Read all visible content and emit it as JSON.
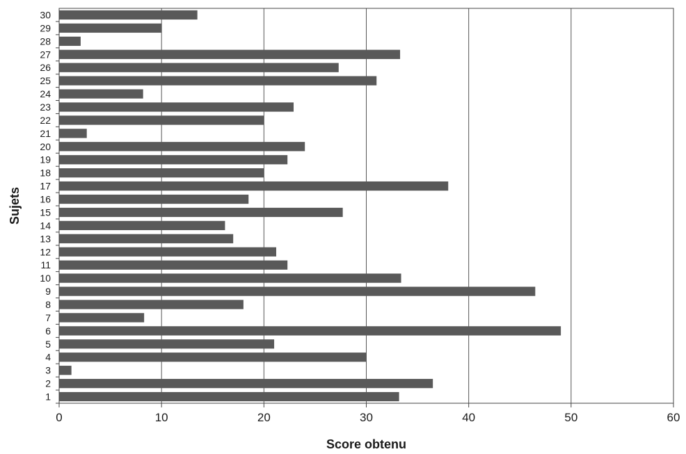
{
  "chart_data": {
    "type": "bar",
    "orientation": "horizontal",
    "xlabel": "Score obtenu",
    "ylabel": "Sujets",
    "xlim": [
      0,
      60
    ],
    "x_ticks": [
      0,
      10,
      20,
      30,
      40,
      50,
      60
    ],
    "grid": "vertical",
    "legend": "none",
    "bar_color": "#595959",
    "categories": [
      "1",
      "2",
      "3",
      "4",
      "5",
      "6",
      "7",
      "8",
      "9",
      "10",
      "11",
      "12",
      "13",
      "14",
      "15",
      "16",
      "17",
      "18",
      "19",
      "20",
      "21",
      "22",
      "23",
      "24",
      "25",
      "26",
      "27",
      "28",
      "29",
      "30"
    ],
    "values": [
      33.2,
      36.5,
      1.2,
      30,
      21,
      49,
      8.3,
      18,
      46.5,
      33.4,
      22.3,
      21.2,
      17,
      16.2,
      27.7,
      18.5,
      38,
      20,
      22.3,
      24,
      2.7,
      20,
      22.9,
      8.2,
      31,
      27.3,
      33.3,
      2.1,
      10,
      13.5
    ]
  }
}
